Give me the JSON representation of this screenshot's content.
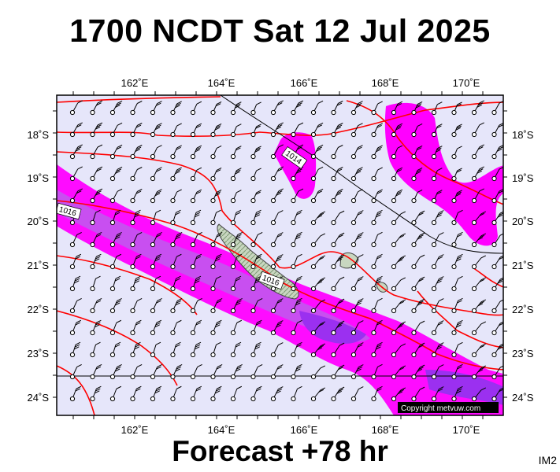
{
  "title": "1700 NCDT Sat 12 Jul 2025",
  "forecast_label": "Forecast +78 hr",
  "image_code": "IM2",
  "copyright": "Copyright metvuw.com",
  "map": {
    "lon_labels": [
      "162˚E",
      "164˚E",
      "166˚E",
      "168˚E",
      "170˚E"
    ],
    "lat_labels": [
      "18˚S",
      "19˚S",
      "20˚S",
      "21˚S",
      "22˚S",
      "23˚S",
      "24˚S"
    ],
    "isobar_labels": [
      "1016",
      "1014",
      "1016"
    ],
    "colors": {
      "background": "#e6e6fa",
      "rain_light": "#ff00ff",
      "rain_heavy": "#8f2fef",
      "isobar": "#ff0000",
      "land": "#b8c9b0"
    }
  }
}
